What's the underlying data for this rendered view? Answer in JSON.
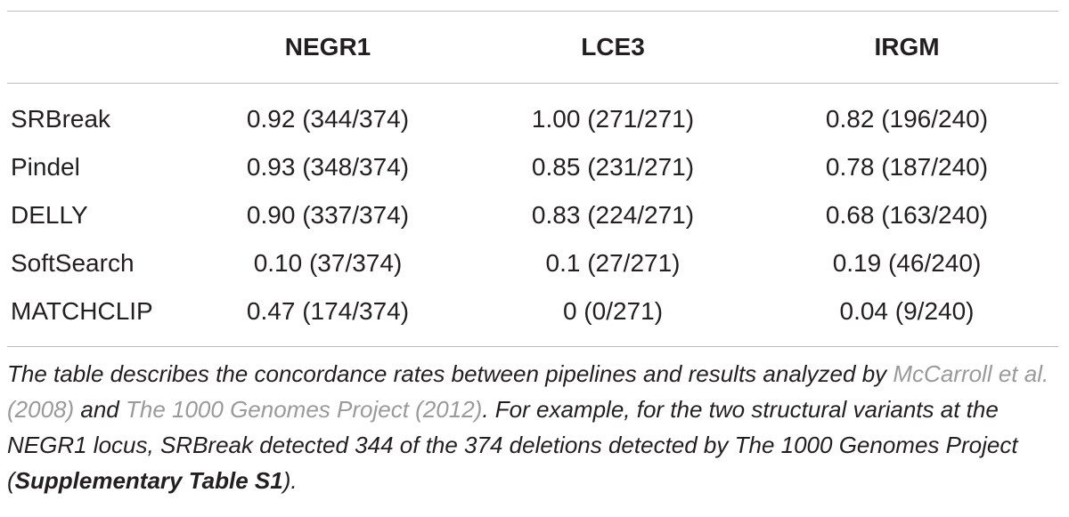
{
  "table": {
    "columns": [
      "",
      "NEGR1",
      "LCE3",
      "IRGM"
    ],
    "rows": [
      {
        "label": "SRBreak",
        "values": [
          "0.92 (344/374)",
          "1.00 (271/271)",
          "0.82 (196/240)"
        ]
      },
      {
        "label": "Pindel",
        "values": [
          "0.93 (348/374)",
          "0.85 (231/271)",
          "0.78 (187/240)"
        ]
      },
      {
        "label": "DELLY",
        "values": [
          "0.90 (337/374)",
          "0.83 (224/271)",
          "0.68 (163/240)"
        ]
      },
      {
        "label": "SoftSearch",
        "values": [
          "0.10 (37/374)",
          "0.1 (27/271)",
          "0.19 (46/240)"
        ]
      },
      {
        "label": "MATCHCLIP",
        "values": [
          "0.47 (174/374)",
          "0 (0/271)",
          "0.04 (9/240)"
        ]
      }
    ]
  },
  "caption": {
    "part1": "The table describes the concordance rates between pipelines and results analyzed by ",
    "ref1": "McCarroll et al. (2008)",
    "part2": " and ",
    "ref2": "The 1000 Genomes Project (2012)",
    "part3": ". For example, for the two structural variants at the NEGR1 locus, SRBreak detected 344 of the 374 deletions detected by The 1000 Genomes Project (",
    "bold_ref": "Supplementary Table S1",
    "part4": ")."
  }
}
